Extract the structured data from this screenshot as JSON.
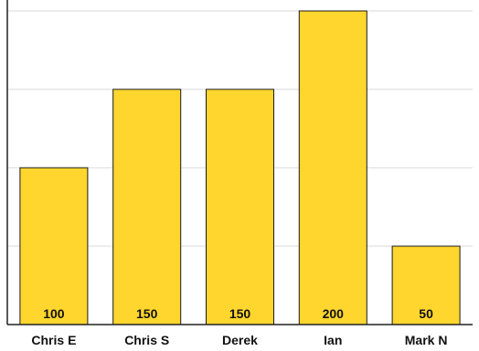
{
  "chart_data": {
    "type": "bar",
    "title": "",
    "xlabel": "",
    "ylabel": "",
    "categories": [
      "Chris E",
      "Chris S",
      "Derek",
      "Ian",
      "Mark N"
    ],
    "values": [
      100,
      150,
      150,
      200,
      50
    ],
    "ylim": [
      0,
      200
    ],
    "yticks": [
      0,
      50,
      100,
      150,
      200
    ],
    "grid": true,
    "legend": "none",
    "colors": {
      "bar_fill": "#FFD62E",
      "bar_stroke": "#1a1a1a",
      "grid": "#d9d9d9",
      "axis": "#222222"
    }
  }
}
